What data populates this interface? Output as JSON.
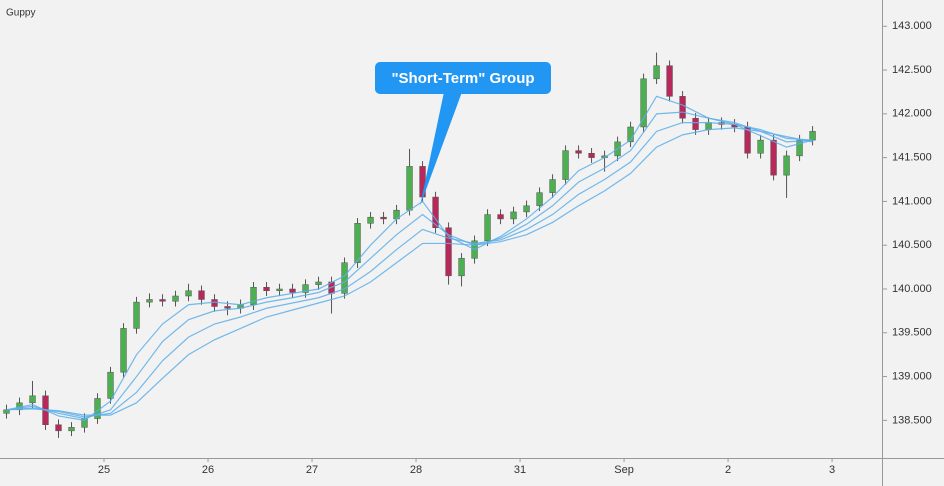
{
  "chart_data": {
    "type": "candlestick",
    "title": "Guppy",
    "up_color": "#4caf50",
    "down_color": "#b8285a",
    "wick_color": "#555555",
    "xlim": [
      0,
      8.48
    ],
    "xticks": [
      {
        "value": 1,
        "label": "25"
      },
      {
        "value": 2,
        "label": "26"
      },
      {
        "value": 3,
        "label": "27"
      },
      {
        "value": 4,
        "label": "28"
      },
      {
        "value": 5,
        "label": "31"
      },
      {
        "value": 6,
        "label": "Sep"
      },
      {
        "value": 7,
        "label": "2"
      },
      {
        "value": 8,
        "label": "3"
      }
    ],
    "ylim": [
      138.07,
      143.3
    ],
    "yticks": [
      {
        "value": 138.5,
        "label": "138.500"
      },
      {
        "value": 139,
        "label": "139.000"
      },
      {
        "value": 139.5,
        "label": "139.500"
      },
      {
        "value": 140,
        "label": "140.000"
      },
      {
        "value": 140.5,
        "label": "140.500"
      },
      {
        "value": 141,
        "label": "141.000"
      },
      {
        "value": 141.5,
        "label": "141.500"
      },
      {
        "value": 142,
        "label": "142.000"
      },
      {
        "value": 142.5,
        "label": "142.500"
      },
      {
        "value": 143,
        "label": "143.000"
      }
    ],
    "x": [
      0.0625,
      0.1875,
      0.3125,
      0.4375,
      0.5625,
      0.6875,
      0.8125,
      0.9375,
      1.0625,
      1.1875,
      1.3125,
      1.4375,
      1.5625,
      1.6875,
      1.8125,
      1.9375,
      2.0625,
      2.1875,
      2.3125,
      2.4375,
      2.5625,
      2.6875,
      2.8125,
      2.9375,
      3.0625,
      3.1875,
      3.3125,
      3.4375,
      3.5625,
      3.6875,
      3.8125,
      3.9375,
      4.0625,
      4.1875,
      4.3125,
      4.4375,
      4.5625,
      4.6875,
      4.8125,
      4.9375,
      5.0625,
      5.1875,
      5.3125,
      5.4375,
      5.5625,
      5.6875,
      5.8125,
      5.9375,
      6.0625,
      6.1875,
      6.3125,
      6.4375,
      6.5625,
      6.6875,
      6.8125,
      6.9375,
      7.0625,
      7.1875,
      7.3125,
      7.4375,
      7.5625,
      7.6875,
      7.8125
    ],
    "open": [
      138.58,
      138.62,
      138.7,
      138.78,
      138.45,
      138.38,
      138.42,
      138.52,
      138.75,
      139.05,
      139.55,
      139.85,
      139.88,
      139.86,
      139.92,
      139.98,
      139.88,
      139.8,
      139.78,
      139.82,
      140.02,
      139.98,
      140.0,
      139.96,
      140.05,
      140.08,
      139.95,
      140.3,
      140.75,
      140.82,
      140.8,
      140.9,
      141.4,
      141.05,
      140.7,
      140.15,
      140.35,
      140.55,
      140.85,
      140.8,
      140.88,
      140.95,
      141.1,
      141.25,
      141.58,
      141.55,
      141.5,
      141.52,
      141.68,
      141.85,
      142.4,
      142.55,
      142.2,
      141.95,
      141.82,
      141.9,
      141.88,
      141.85,
      141.55,
      141.7,
      141.3,
      141.52,
      141.7
    ],
    "high": [
      138.68,
      138.76,
      138.95,
      138.84,
      138.51,
      138.48,
      138.58,
      138.81,
      139.11,
      139.61,
      139.91,
      139.95,
      139.94,
      139.98,
      140.06,
      140.04,
      139.94,
      139.86,
      139.88,
      140.08,
      140.08,
      140.06,
      140.06,
      140.11,
      140.14,
      140.14,
      140.36,
      140.81,
      140.88,
      140.88,
      140.96,
      141.6,
      141.46,
      141.11,
      140.76,
      140.41,
      140.61,
      140.91,
      140.91,
      140.94,
      141.01,
      141.16,
      141.31,
      141.64,
      141.64,
      141.61,
      141.58,
      141.74,
      141.91,
      142.46,
      142.7,
      142.61,
      142.26,
      142.01,
      141.96,
      141.96,
      141.94,
      141.91,
      141.76,
      141.76,
      141.58,
      141.76,
      141.86
    ],
    "low": [
      138.52,
      138.56,
      138.64,
      138.39,
      138.3,
      138.32,
      138.36,
      138.46,
      138.69,
      138.99,
      139.49,
      139.79,
      139.8,
      139.8,
      139.86,
      139.82,
      139.74,
      139.7,
      139.72,
      139.76,
      139.92,
      139.92,
      139.9,
      139.9,
      139.99,
      139.72,
      139.89,
      140.24,
      140.69,
      140.74,
      140.74,
      140.84,
      140.99,
      140.64,
      140.05,
      140.03,
      140.29,
      140.49,
      140.74,
      140.74,
      140.82,
      140.89,
      141.04,
      141.19,
      141.49,
      141.44,
      141.34,
      141.46,
      141.62,
      141.79,
      142.34,
      142.14,
      141.89,
      141.76,
      141.76,
      141.82,
      141.79,
      141.49,
      141.49,
      141.24,
      141.04,
      141.46,
      141.64
    ],
    "close": [
      138.62,
      138.7,
      138.78,
      138.45,
      138.38,
      138.42,
      138.52,
      138.75,
      139.05,
      139.55,
      139.85,
      139.88,
      139.86,
      139.92,
      139.98,
      139.88,
      139.8,
      139.78,
      139.82,
      140.02,
      139.98,
      140.0,
      139.96,
      140.05,
      140.08,
      139.95,
      140.3,
      140.75,
      140.82,
      140.8,
      140.9,
      141.4,
      141.05,
      140.7,
      140.15,
      140.35,
      140.55,
      140.85,
      140.8,
      140.88,
      140.95,
      141.1,
      141.25,
      141.58,
      141.55,
      141.5,
      141.52,
      141.68,
      141.85,
      142.4,
      142.55,
      142.2,
      141.95,
      141.82,
      141.9,
      141.88,
      141.85,
      141.55,
      141.7,
      141.3,
      141.52,
      141.7,
      141.8
    ],
    "ma_x": [
      0.0625,
      0.3125,
      0.5625,
      0.8125,
      1.0625,
      1.3125,
      1.5625,
      1.8125,
      2.0625,
      2.3125,
      2.5625,
      2.8125,
      3.0625,
      3.3125,
      3.5625,
      3.8125,
      4.0625,
      4.3125,
      4.5625,
      4.8125,
      5.0625,
      5.3125,
      5.5625,
      5.8125,
      6.0625,
      6.3125,
      6.5625,
      6.8125,
      7.0625,
      7.3125,
      7.5625,
      7.8125
    ],
    "ma_color": "#5aaeea",
    "ma_series": [
      {
        "values": [
          138.62,
          138.68,
          138.55,
          138.5,
          138.72,
          139.25,
          139.6,
          139.82,
          139.85,
          139.82,
          139.9,
          139.95,
          140.0,
          140.15,
          140.5,
          140.8,
          141.0,
          140.6,
          140.45,
          140.6,
          140.8,
          141.05,
          141.35,
          141.5,
          141.7,
          142.2,
          142.1,
          141.95,
          141.88,
          141.75,
          141.62,
          141.7
        ]
      },
      {
        "values": [
          138.62,
          138.66,
          138.58,
          138.52,
          138.62,
          139.0,
          139.4,
          139.65,
          139.75,
          139.78,
          139.85,
          139.9,
          139.96,
          140.08,
          140.35,
          140.62,
          140.85,
          140.62,
          140.5,
          140.58,
          140.74,
          140.95,
          141.22,
          141.38,
          141.58,
          142.0,
          142.02,
          141.95,
          141.9,
          141.8,
          141.68,
          141.7
        ]
      },
      {
        "values": [
          138.62,
          138.64,
          138.6,
          138.54,
          138.58,
          138.82,
          139.18,
          139.45,
          139.6,
          139.68,
          139.78,
          139.84,
          139.9,
          140.0,
          140.2,
          140.45,
          140.68,
          140.58,
          140.52,
          140.56,
          140.68,
          140.85,
          141.08,
          141.25,
          141.45,
          141.8,
          141.9,
          141.9,
          141.88,
          141.82,
          141.72,
          141.7
        ]
      },
      {
        "values": [
          138.62,
          138.63,
          138.61,
          138.56,
          138.56,
          138.7,
          138.98,
          139.25,
          139.42,
          139.55,
          139.68,
          139.76,
          139.84,
          139.92,
          140.08,
          140.3,
          140.52,
          140.52,
          140.5,
          140.54,
          140.62,
          140.76,
          140.95,
          141.12,
          141.32,
          141.62,
          141.76,
          141.82,
          141.84,
          141.8,
          141.74,
          141.68
        ]
      }
    ],
    "annotation": "\"Short-Term\" Group"
  }
}
